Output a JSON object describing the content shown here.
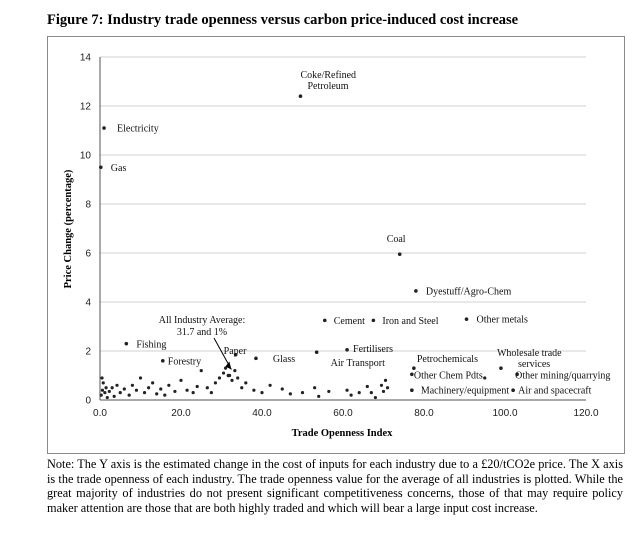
{
  "title": "Figure 7: Industry trade openness versus carbon price-induced cost increase",
  "note": "Note: The Y axis is the estimated change in the cost of inputs for each industry due to a £20/tCO2e price.  The X axis is the trade openness of each industry.  The trade openness value for the average of all industries is plotted.  While the great majority of industries do not present significant competitiveness concerns, those of that may require policy maker attention are those that are both highly traded and which will bear a large input cost increase.",
  "chart_data": {
    "type": "scatter",
    "title": "",
    "xlabel": "Trade Openness Index",
    "ylabel": "Price Change (percentage)",
    "xlim": [
      0,
      120
    ],
    "ylim": [
      0,
      14
    ],
    "grid": true,
    "x_ticks": [
      "0.0",
      "20.0",
      "40.0",
      "60.0",
      "80.0",
      "100.0",
      "120.0"
    ],
    "y_ticks": [
      "0",
      "2",
      "4",
      "6",
      "8",
      "10",
      "12",
      "14"
    ],
    "labeled_points": [
      {
        "label": "Coke/Refined Petroleum",
        "label_lines": [
          "Coke/Refined",
          "Petroleum"
        ],
        "x": 49.5,
        "y": 12.4
      },
      {
        "label": "Electricity",
        "x": 1.0,
        "y": 11.1
      },
      {
        "label": "Gas",
        "x": 0.2,
        "y": 9.5
      },
      {
        "label": "Coal",
        "x": 74.0,
        "y": 5.95
      },
      {
        "label": "Dyestuff/Agro-Chem",
        "x": 78.0,
        "y": 4.45
      },
      {
        "label": "Cement",
        "x": 55.5,
        "y": 3.25
      },
      {
        "label": "Iron and Steel",
        "x": 67.5,
        "y": 3.25
      },
      {
        "label": "Other metals",
        "x": 90.5,
        "y": 3.3
      },
      {
        "label": "Fishing",
        "x": 6.5,
        "y": 2.3
      },
      {
        "label": "Forestry",
        "x": 15.5,
        "y": 1.6
      },
      {
        "label": "Paper",
        "x": 33.5,
        "y": 1.85
      },
      {
        "label": "Glass",
        "x": 38.5,
        "y": 1.7
      },
      {
        "label": "Fertilisers",
        "x": 61.0,
        "y": 2.05
      },
      {
        "label": "Air Transport",
        "x": 53.5,
        "y": 1.95
      },
      {
        "label": "Petrochemicals",
        "x": 77.5,
        "y": 1.3
      },
      {
        "label": "Other Chem Pdts",
        "x": 77.0,
        "y": 1.05
      },
      {
        "label": "Wholesale trade services",
        "label_lines": [
          "Wholesale trade",
          "services"
        ],
        "x": 99.0,
        "y": 1.3
      },
      {
        "label": "Other mining/quarrying",
        "x": 103.0,
        "y": 1.05
      },
      {
        "label": "Machinery/equipment",
        "x": 77.0,
        "y": 0.4
      },
      {
        "label": "Air and spacecraft",
        "x": 102.0,
        "y": 0.4
      }
    ],
    "average_point": {
      "label": "All Industry Average:",
      "value_label": "31.7 and 1%",
      "x": 31.7,
      "y": 1.0
    },
    "points": [
      [
        0.3,
        0.2
      ],
      [
        0.6,
        0.4
      ],
      [
        0.8,
        0.7
      ],
      [
        1.2,
        0.3
      ],
      [
        1.5,
        0.5
      ],
      [
        0.5,
        0.9
      ],
      [
        1.8,
        0.1
      ],
      [
        2.3,
        0.35
      ],
      [
        3.0,
        0.5
      ],
      [
        3.5,
        0.15
      ],
      [
        4.2,
        0.6
      ],
      [
        5.0,
        0.3
      ],
      [
        6.0,
        0.45
      ],
      [
        7.2,
        0.2
      ],
      [
        8.0,
        0.6
      ],
      [
        9.0,
        0.4
      ],
      [
        10.0,
        0.9
      ],
      [
        11.0,
        0.3
      ],
      [
        12.0,
        0.5
      ],
      [
        13.0,
        0.7
      ],
      [
        14.0,
        0.25
      ],
      [
        15.0,
        0.45
      ],
      [
        16.0,
        0.2
      ],
      [
        17.0,
        0.6
      ],
      [
        18.5,
        0.35
      ],
      [
        20.0,
        0.8
      ],
      [
        21.5,
        0.4
      ],
      [
        23.0,
        0.3
      ],
      [
        24.0,
        0.55
      ],
      [
        25.0,
        1.2
      ],
      [
        26.5,
        0.5
      ],
      [
        27.5,
        0.3
      ],
      [
        28.5,
        0.7
      ],
      [
        29.5,
        0.9
      ],
      [
        30.5,
        1.1
      ],
      [
        31.0,
        1.3
      ],
      [
        32.0,
        1.0
      ],
      [
        32.6,
        0.8
      ],
      [
        33.3,
        1.2
      ],
      [
        34.0,
        0.9
      ],
      [
        35.0,
        0.5
      ],
      [
        36.0,
        0.7
      ],
      [
        38.0,
        0.4
      ],
      [
        40.0,
        0.3
      ],
      [
        42.0,
        0.6
      ],
      [
        45.0,
        0.45
      ],
      [
        47.0,
        0.25
      ],
      [
        50.0,
        0.3
      ],
      [
        53.0,
        0.5
      ],
      [
        54.0,
        0.15
      ],
      [
        56.5,
        0.35
      ],
      [
        61.0,
        0.4
      ],
      [
        62.0,
        0.2
      ],
      [
        64.0,
        0.3
      ],
      [
        66.0,
        0.55
      ],
      [
        67.0,
        0.3
      ],
      [
        68.0,
        0.1
      ],
      [
        69.5,
        0.6
      ],
      [
        70.0,
        0.35
      ],
      [
        70.5,
        0.8
      ],
      [
        71.0,
        0.5
      ],
      [
        95.0,
        0.9
      ]
    ]
  }
}
